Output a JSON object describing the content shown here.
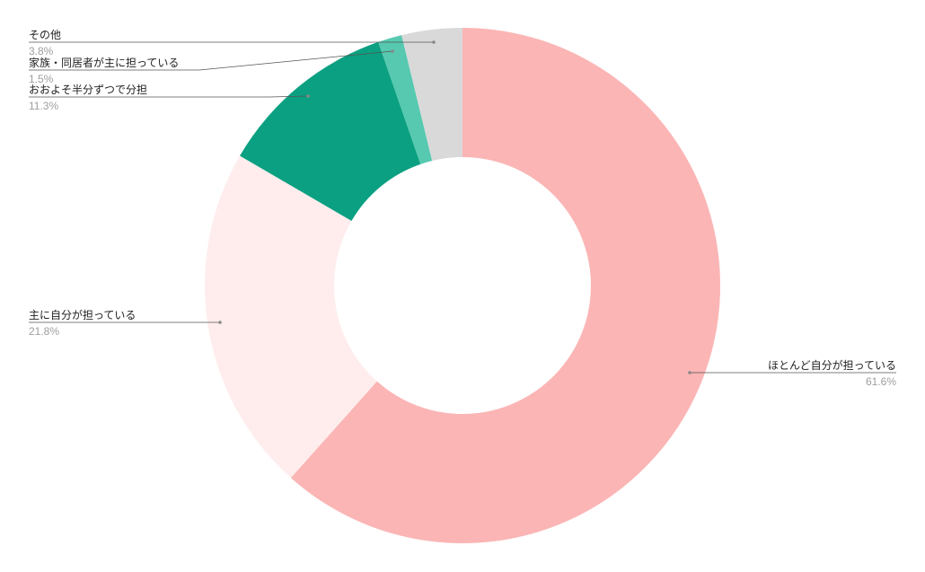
{
  "chart_data": {
    "type": "pie",
    "donut": true,
    "title": "",
    "slices": [
      {
        "label": "ほとんど自分が担っている",
        "value": 61.6,
        "display": "61.6%",
        "color": "#fbb5b5"
      },
      {
        "label": "主に自分が担っている",
        "value": 21.8,
        "display": "21.8%",
        "color": "#ffeded"
      },
      {
        "label": "おおよそ半分ずつで分担",
        "value": 11.3,
        "display": "11.3%",
        "color": "#0ba081"
      },
      {
        "label": "家族・同居者が主に担っている",
        "value": 1.5,
        "display": "1.5%",
        "color": "#56c9b0"
      },
      {
        "label": "その他",
        "value": 3.8,
        "display": "3.8%",
        "color": "#d9d9d9"
      }
    ],
    "start_angle": "top",
    "direction": "clockwise",
    "legend": "leader-line labels"
  }
}
